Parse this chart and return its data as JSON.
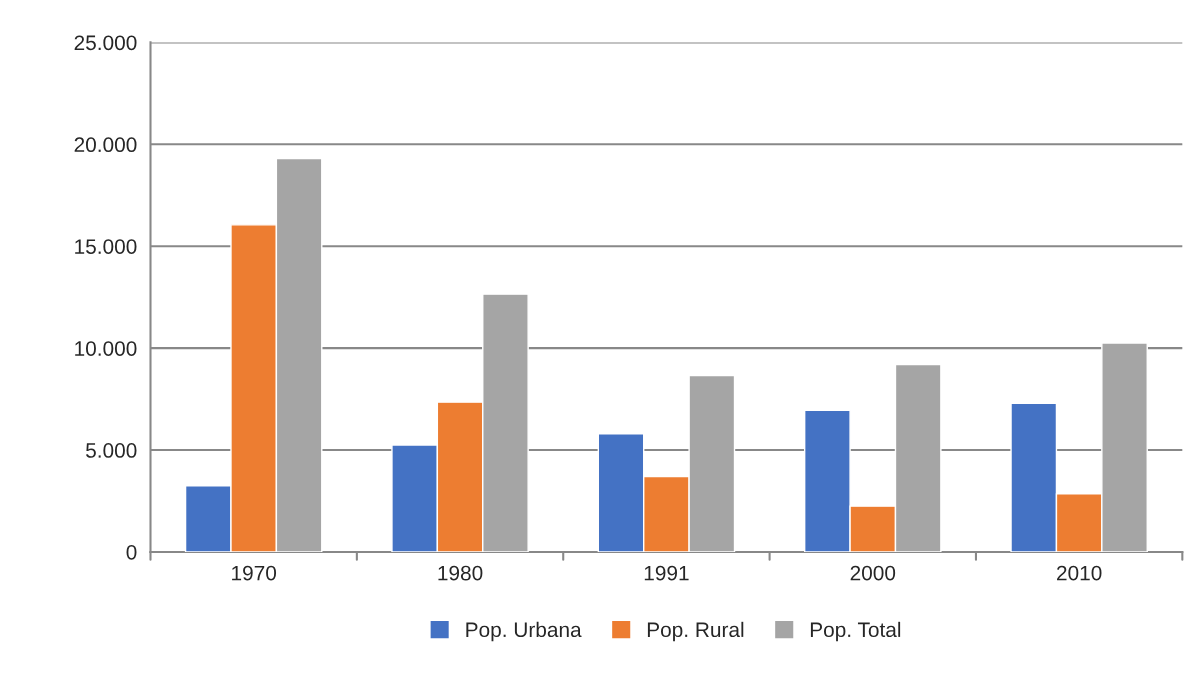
{
  "chart_data": {
    "type": "bar",
    "categories": [
      "1970",
      "1980",
      "1991",
      "2000",
      "2010"
    ],
    "series": [
      {
        "name": "Pop. Urbana",
        "color": "#4472c4",
        "values": [
          3250,
          5250,
          5800,
          6950,
          7300
        ]
      },
      {
        "name": "Pop. Rural",
        "color": "#ed7d31",
        "values": [
          16050,
          7350,
          3700,
          2250,
          2850
        ]
      },
      {
        "name": "Pop. Total",
        "color": "#a5a5a5",
        "values": [
          19300,
          12650,
          8650,
          9200,
          10250
        ]
      }
    ],
    "ylim": [
      0,
      25000
    ],
    "yticks": [
      0,
      {
        "value": 5000,
        "label": "5.000"
      },
      {
        "value": 10000,
        "label": "10.000"
      },
      {
        "value": 15000,
        "label": "15.000"
      },
      {
        "value": 20000,
        "label": "20.000"
      },
      {
        "value": 25000,
        "label": "25.000"
      }
    ],
    "grid": "y",
    "legend": "bottom"
  }
}
